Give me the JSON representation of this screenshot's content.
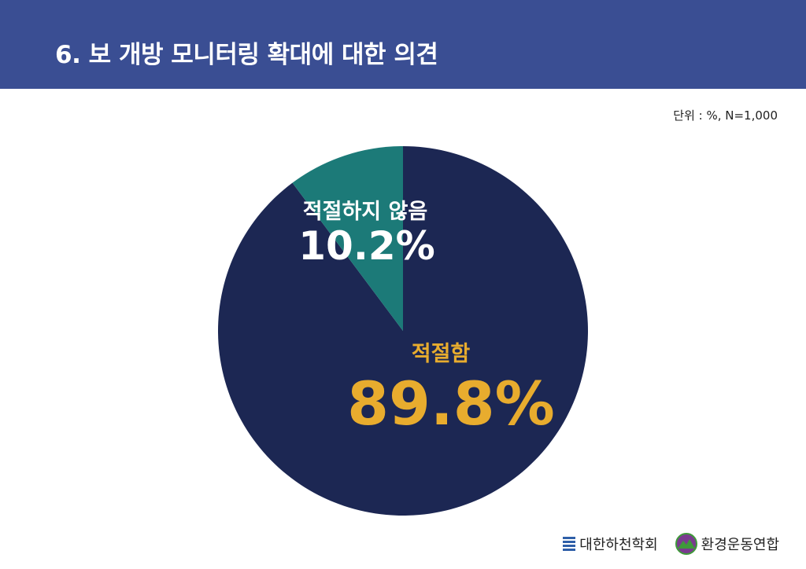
{
  "header": {
    "title": "6. 보 개방 모니터링 확대에 대한 의견"
  },
  "unit_note": "단위 : %, N=1,000",
  "colors": {
    "header_bg": "#3a4e93",
    "slice_main": "#1c2753",
    "slice_minor": "#1c7a78",
    "label_main": "#e8ac2e",
    "label_minor": "#ffffff"
  },
  "chart_data": {
    "type": "pie",
    "title": "",
    "slices": [
      {
        "label": "적절함",
        "value": 89.8,
        "value_label": "89.8%",
        "color": "#1c2753",
        "label_color": "#e8ac2e"
      },
      {
        "label": "적절하지 않음",
        "value": 10.2,
        "value_label": "10.2%",
        "color": "#1c7a78",
        "label_color": "#ffffff"
      }
    ]
  },
  "footer": {
    "logo_1": {
      "text": "대한하천학회",
      "icon": "stripes-icon"
    },
    "logo_2": {
      "text": "환경운동연합",
      "icon": "mountain-icon"
    }
  }
}
